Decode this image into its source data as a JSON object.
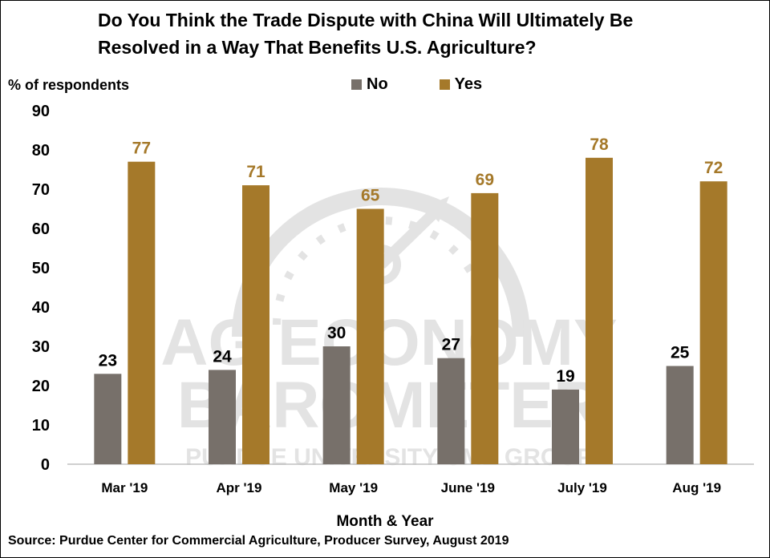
{
  "title_lines": [
    "Do You Think the Trade Dispute with China Will Ultimately Be",
    "Resolved in a Way That Benefits U.S. Agriculture?"
  ],
  "ylabel": "% of respondents",
  "xlabel": "Month & Year",
  "source": "Source: Purdue Center for Commercial Agriculture, Producer Survey, August 2019",
  "watermark": {
    "line1": "AG ECONOMY",
    "line2": "BAROMETER",
    "line3": "PURDUE UNIVERSITY CME GROUP"
  },
  "colors": {
    "no": "#77706a",
    "yes": "#a5792a",
    "watermark": "#e3e3e3"
  },
  "chart_data": {
    "type": "bar",
    "title": "Do You Think the Trade Dispute with China Will Ultimately Be Resolved in a Way That Benefits U.S. Agriculture?",
    "xlabel": "Month & Year",
    "ylabel": "% of respondents",
    "categories": [
      "Mar '19",
      "Apr '19",
      "May '19",
      "June '19",
      "July '19",
      "Aug '19"
    ],
    "series": [
      {
        "name": "No",
        "values": [
          23,
          24,
          30,
          27,
          19,
          25
        ]
      },
      {
        "name": "Yes",
        "values": [
          77,
          71,
          65,
          69,
          78,
          72
        ]
      }
    ],
    "ylim": [
      0,
      90
    ],
    "yticks": [
      0,
      10,
      20,
      30,
      40,
      50,
      60,
      70,
      80,
      90
    ],
    "grid": false,
    "legend_position": "top"
  }
}
